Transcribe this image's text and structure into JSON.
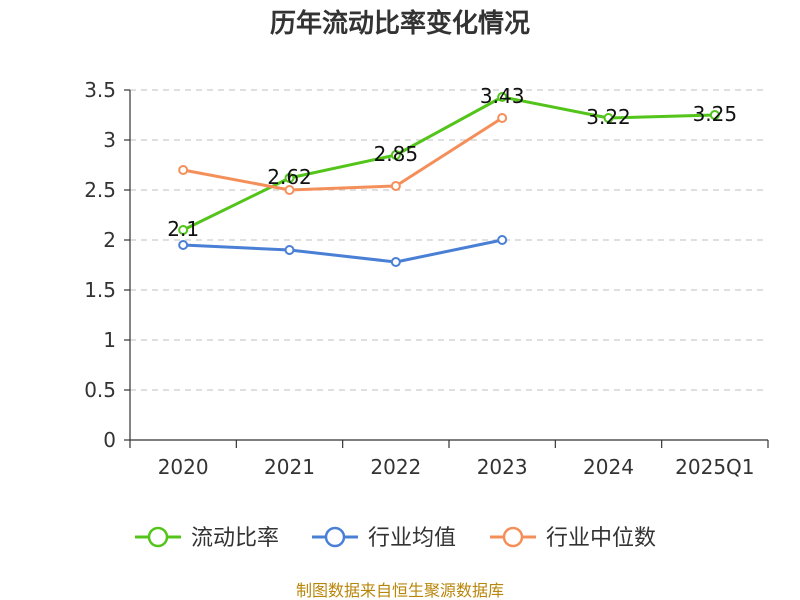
{
  "chart_data": {
    "type": "line",
    "title": "历年流动比率变化情况",
    "categories": [
      "2020",
      "2021",
      "2022",
      "2023",
      "2024",
      "2025Q1"
    ],
    "ylim": [
      0,
      3.5
    ],
    "yticks": [
      "0",
      "0.5",
      "1",
      "1.5",
      "2",
      "2.5",
      "3",
      "3.5"
    ],
    "grid": true,
    "legend_position": "bottom",
    "series": [
      {
        "name": "流动比率",
        "color": "#52c41a",
        "values": [
          2.1,
          2.62,
          2.85,
          3.43,
          3.22,
          3.25
        ],
        "labels": [
          "2.1",
          "2.62",
          "2.85",
          "3.43",
          "3.22",
          "3.25"
        ]
      },
      {
        "name": "行业均值",
        "color": "#4a7fd6",
        "values": [
          1.95,
          1.9,
          1.78,
          2.0,
          null,
          null
        ]
      },
      {
        "name": "行业中位数",
        "color": "#f58f5a",
        "values": [
          2.7,
          2.5,
          2.54,
          3.22,
          null,
          null
        ]
      }
    ]
  },
  "footer": {
    "source": "制图数据来自恒生聚源数据库"
  }
}
